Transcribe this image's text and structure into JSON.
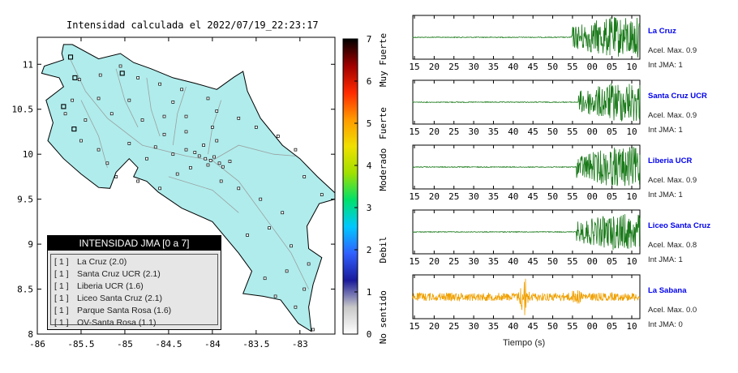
{
  "header": {
    "title": "Intensidad calculada el 2022/07/19_22:23:17"
  },
  "map": {
    "x_ticks": [
      "-86",
      "-85.5",
      "-85",
      "-84.5",
      "-84",
      "-83.5",
      "-83"
    ],
    "y_ticks": [
      "11",
      "10.5",
      "10",
      "9.5",
      "9",
      "8.5",
      "8"
    ],
    "xlim": [
      -86,
      -82.6
    ],
    "ylim": [
      8,
      11.3
    ],
    "sea_color": "#ffffff",
    "land_color": "#b0ecec",
    "stations": [
      {
        "lon": -85.62,
        "lat": 11.08
      },
      {
        "lon": -85.28,
        "lat": 10.88
      },
      {
        "lon": -85.52,
        "lat": 10.83
      },
      {
        "lon": -85.05,
        "lat": 10.98
      },
      {
        "lon": -84.85,
        "lat": 10.85
      },
      {
        "lon": -84.6,
        "lat": 10.78
      },
      {
        "lon": -84.35,
        "lat": 10.72
      },
      {
        "lon": -84.05,
        "lat": 10.62
      },
      {
        "lon": -84.45,
        "lat": 10.58
      },
      {
        "lon": -84.95,
        "lat": 10.6
      },
      {
        "lon": -85.3,
        "lat": 10.62
      },
      {
        "lon": -85.6,
        "lat": 10.6
      },
      {
        "lon": -85.68,
        "lat": 10.45
      },
      {
        "lon": -85.45,
        "lat": 10.38
      },
      {
        "lon": -85.15,
        "lat": 10.45
      },
      {
        "lon": -84.8,
        "lat": 10.38
      },
      {
        "lon": -84.55,
        "lat": 10.42
      },
      {
        "lon": -84.3,
        "lat": 10.42
      },
      {
        "lon": -83.95,
        "lat": 10.48
      },
      {
        "lon": -83.7,
        "lat": 10.4
      },
      {
        "lon": -83.5,
        "lat": 10.3
      },
      {
        "lon": -83.25,
        "lat": 10.2
      },
      {
        "lon": -83.05,
        "lat": 10.05
      },
      {
        "lon": -85.5,
        "lat": 10.15
      },
      {
        "lon": -85.3,
        "lat": 10.05
      },
      {
        "lon": -84.95,
        "lat": 10.12
      },
      {
        "lon": -84.65,
        "lat": 10.08
      },
      {
        "lon": -84.45,
        "lat": 10.0
      },
      {
        "lon": -84.3,
        "lat": 10.05
      },
      {
        "lon": -84.2,
        "lat": 10.02
      },
      {
        "lon": -84.15,
        "lat": 9.98
      },
      {
        "lon": -84.08,
        "lat": 9.95
      },
      {
        "lon": -84.02,
        "lat": 9.93
      },
      {
        "lon": -83.98,
        "lat": 9.97
      },
      {
        "lon": -84.05,
        "lat": 9.88
      },
      {
        "lon": -83.92,
        "lat": 9.9
      },
      {
        "lon": -83.88,
        "lat": 9.86
      },
      {
        "lon": -83.8,
        "lat": 9.92
      },
      {
        "lon": -84.1,
        "lat": 10.1
      },
      {
        "lon": -83.95,
        "lat": 10.15
      },
      {
        "lon": -84.25,
        "lat": 9.85
      },
      {
        "lon": -84.4,
        "lat": 9.78
      },
      {
        "lon": -84.6,
        "lat": 9.62
      },
      {
        "lon": -84.85,
        "lat": 9.7
      },
      {
        "lon": -85.1,
        "lat": 9.75
      },
      {
        "lon": -83.7,
        "lat": 9.62
      },
      {
        "lon": -83.45,
        "lat": 9.5
      },
      {
        "lon": -83.2,
        "lat": 9.35
      },
      {
        "lon": -83.35,
        "lat": 9.18
      },
      {
        "lon": -83.6,
        "lat": 9.1
      },
      {
        "lon": -83.1,
        "lat": 8.98
      },
      {
        "lon": -82.9,
        "lat": 8.78
      },
      {
        "lon": -83.15,
        "lat": 8.7
      },
      {
        "lon": -83.4,
        "lat": 8.62
      },
      {
        "lon": -83.28,
        "lat": 8.42
      },
      {
        "lon": -82.95,
        "lat": 8.5
      },
      {
        "lon": -82.85,
        "lat": 8.05
      },
      {
        "lon": -83.05,
        "lat": 8.3
      },
      {
        "lon": -82.95,
        "lat": 9.75
      },
      {
        "lon": -82.75,
        "lat": 9.55
      },
      {
        "lon": -84.3,
        "lat": 10.25
      },
      {
        "lon": -84.55,
        "lat": 10.22
      },
      {
        "lon": -84.75,
        "lat": 9.95
      },
      {
        "lon": -85.2,
        "lat": 9.9
      },
      {
        "lon": -84.0,
        "lat": 10.3
      },
      {
        "lon": -83.9,
        "lat": 9.7
      }
    ],
    "highlighted_stations": [
      {
        "lon": -85.62,
        "lat": 11.08
      },
      {
        "lon": -85.57,
        "lat": 10.85
      },
      {
        "lon": -85.03,
        "lat": 10.9
      },
      {
        "lon": -85.58,
        "lat": 10.28
      },
      {
        "lon": -85.7,
        "lat": 10.53
      }
    ]
  },
  "colorbar": {
    "ticks": [
      "0",
      "1",
      "2",
      "3",
      "4",
      "5",
      "6",
      "7"
    ],
    "labels": [
      {
        "text": "No sentido",
        "value": 0.4
      },
      {
        "text": "Debil",
        "value": 2.0
      },
      {
        "text": "Moderado",
        "value": 3.9
      },
      {
        "text": "Fuerte",
        "value": 5.0
      },
      {
        "text": "Muy Fuerte",
        "value": 6.5
      }
    ],
    "stops": [
      "#ffffff",
      "#c8c8c8",
      "#1a1a9a",
      "#3060ff",
      "#00c8ff",
      "#00e06a",
      "#a0e000",
      "#f0e000",
      "#ff9a00",
      "#ff2a00",
      "#a00000",
      "#000000"
    ]
  },
  "legend": {
    "title": "INTENSIDAD JMA [0 a 7]",
    "items": [
      {
        "level": "[ 1 ]",
        "label": "La Cruz (2.0)"
      },
      {
        "level": "[ 1 ]",
        "label": "Santa Cruz UCR (2.1)"
      },
      {
        "level": "[ 1 ]",
        "label": "Liberia UCR (1.6)"
      },
      {
        "level": "[ 1 ]",
        "label": "Liceo Santa Cruz (2.1)"
      },
      {
        "level": "[ 1 ]",
        "label": "Parque Santa Rosa (1.6)"
      },
      {
        "level": "[ 1 ]",
        "label": "OV-Santa Rosa (1.1)"
      }
    ]
  },
  "chart_data": {
    "type": "line",
    "xlabel": "Tiempo (s)",
    "x_tick_labels": [
      "15",
      "20",
      "25",
      "30",
      "35",
      "40",
      "45",
      "50",
      "55",
      "00",
      "05",
      "10"
    ],
    "stations": [
      {
        "name": "La Cruz",
        "accel": "Acel. Max. 0.9",
        "jma": "Int JMA: 1",
        "color": "#1a7a1a",
        "onset": 0.7,
        "amp": 1.0,
        "noise": 0.02
      },
      {
        "name": "Santa Cruz UCR",
        "accel": "Acel. Max. 0.9",
        "jma": "Int JMA: 1",
        "color": "#1a7a1a",
        "onset": 0.73,
        "amp": 1.0,
        "noise": 0.02
      },
      {
        "name": "Liberia UCR",
        "accel": "Acel. Max. 0.9",
        "jma": "Int JMA: 1",
        "color": "#1a7a1a",
        "onset": 0.72,
        "amp": 1.0,
        "noise": 0.02
      },
      {
        "name": "Liceo Santa Cruz",
        "accel": "Acel. Max. 0.8",
        "jma": "Int JMA: 1",
        "color": "#1a7a1a",
        "onset": 0.72,
        "amp": 0.9,
        "noise": 0.02
      },
      {
        "name": "La Sabana",
        "accel": "Acel. Max. 0.0",
        "jma": "Int JMA: 0",
        "color": "#f0a000",
        "onset": 0.0,
        "amp": 0.35,
        "noise": 0.12
      }
    ]
  }
}
